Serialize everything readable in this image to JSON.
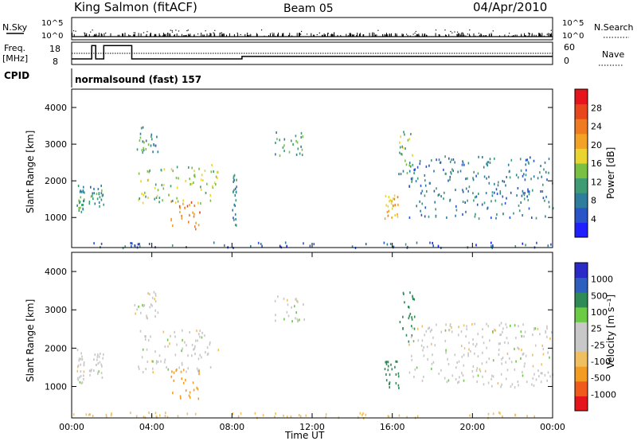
{
  "header": {
    "title": "King Salmon (fitACF)",
    "beam": "Beam 05",
    "date": "04/Apr/2010"
  },
  "top_panels": {
    "nsky_label": "N.Sky",
    "nsky_ticks": [
      "10^5",
      "10^0"
    ],
    "nsearch_label": "N.Search",
    "freq_label": "Freq.",
    "freq_unit": "[MHz]",
    "freq_ticks": [
      "18",
      "8"
    ],
    "nave_label": "Nave",
    "nave_ticks": [
      "60",
      "0"
    ],
    "cpid_label": "CPID",
    "cpid_value": "normalsound (fast) 157"
  },
  "colors": {
    "power": [
      "#1f1fff",
      "#2a55c8",
      "#2e7d9c",
      "#3e9b74",
      "#7ac143",
      "#e9d430",
      "#f2a225",
      "#f07a1f",
      "#e8471d",
      "#e6141c"
    ],
    "velocity": [
      "#e6141c",
      "#f05a1a",
      "#f39c21",
      "#f0c060",
      "#c8c8c8",
      "#c8c8c8",
      "#6ccb45",
      "#2e8b57",
      "#2e5fbf",
      "#2a2ac8"
    ],
    "ground_scatter": "#c8c8c8"
  },
  "chart_data": [
    {
      "type": "heatmap",
      "name": "power",
      "ylabel": "Slant Range [km]",
      "yticks": [
        "4000",
        "3000",
        "2000",
        "1000"
      ],
      "ylim": [
        180,
        4500
      ],
      "xlim": [
        0,
        24
      ],
      "colorbar_label": "Power [dB]",
      "colorbar_ticks": [
        "28",
        "24",
        "20",
        "16",
        "12",
        "8",
        "4"
      ],
      "colorbar_range": [
        0,
        30
      ],
      "regions": [
        {
          "t0": 0.25,
          "t1": 0.6,
          "r0": 1100,
          "r1": 2000,
          "value": 10
        },
        {
          "t0": 0.85,
          "t1": 1.6,
          "r0": 1250,
          "r1": 1900,
          "value": 9
        },
        {
          "t0": 3.1,
          "t1": 4.3,
          "r0": 2800,
          "r1": 3500,
          "value": 9
        },
        {
          "t0": 3.3,
          "t1": 7.3,
          "r0": 1400,
          "r1": 2500,
          "value": 14
        },
        {
          "t0": 4.9,
          "t1": 6.4,
          "r0": 700,
          "r1": 1500,
          "value": 22
        },
        {
          "t0": 8.0,
          "t1": 8.2,
          "r0": 800,
          "r1": 2200,
          "value": 8
        },
        {
          "t0": 10.0,
          "t1": 11.6,
          "r0": 2700,
          "r1": 3400,
          "value": 10
        },
        {
          "t0": 15.6,
          "t1": 16.3,
          "r0": 1000,
          "r1": 1700,
          "value": 19
        },
        {
          "t0": 16.3,
          "t1": 17.1,
          "r0": 2200,
          "r1": 3500,
          "value": 12
        },
        {
          "t0": 16.8,
          "t1": 24.0,
          "r0": 1000,
          "r1": 2700,
          "value": 8
        },
        {
          "t0": 0.0,
          "t1": 24.0,
          "r0": 200,
          "r1": 350,
          "value": 6
        }
      ]
    },
    {
      "type": "heatmap",
      "name": "velocity",
      "ylabel": "Slant Range [km]",
      "yticks": [
        "4000",
        "3000",
        "2000",
        "1000"
      ],
      "ylim": [
        180,
        4500
      ],
      "xlim": [
        0,
        24
      ],
      "xlabel": "Time UT",
      "xticks": [
        "00:00",
        "04:00",
        "08:00",
        "12:00",
        "16:00",
        "20:00",
        "00:00"
      ],
      "colorbar_label": "Velocity [m s⁻¹]",
      "colorbar_ticks": [
        "1000",
        "500",
        "100",
        "25",
        "-25",
        "-100",
        "-500",
        "-1000"
      ],
      "regions": [
        {
          "t0": 0.25,
          "t1": 0.6,
          "r0": 1100,
          "r1": 2000,
          "value": 0
        },
        {
          "t0": 0.85,
          "t1": 1.6,
          "r0": 1250,
          "r1": 1900,
          "value": 0
        },
        {
          "t0": 3.1,
          "t1": 4.3,
          "r0": 2800,
          "r1": 3500,
          "value": 0
        },
        {
          "t0": 3.3,
          "t1": 7.3,
          "r0": 1400,
          "r1": 2500,
          "value": 0
        },
        {
          "t0": 4.9,
          "t1": 6.4,
          "r0": 700,
          "r1": 1500,
          "value": -200
        },
        {
          "t0": 10.0,
          "t1": 11.6,
          "r0": 2700,
          "r1": 3400,
          "value": 0
        },
        {
          "t0": 15.6,
          "t1": 16.3,
          "r0": 900,
          "r1": 1700,
          "value": 150
        },
        {
          "t0": 16.3,
          "t1": 17.1,
          "r0": 2200,
          "r1": 3500,
          "value": 150
        },
        {
          "t0": 16.8,
          "t1": 24.0,
          "r0": 1000,
          "r1": 2700,
          "value": 0
        },
        {
          "t0": 0.0,
          "t1": 24.0,
          "r0": 200,
          "r1": 350,
          "value": -60
        }
      ]
    }
  ]
}
